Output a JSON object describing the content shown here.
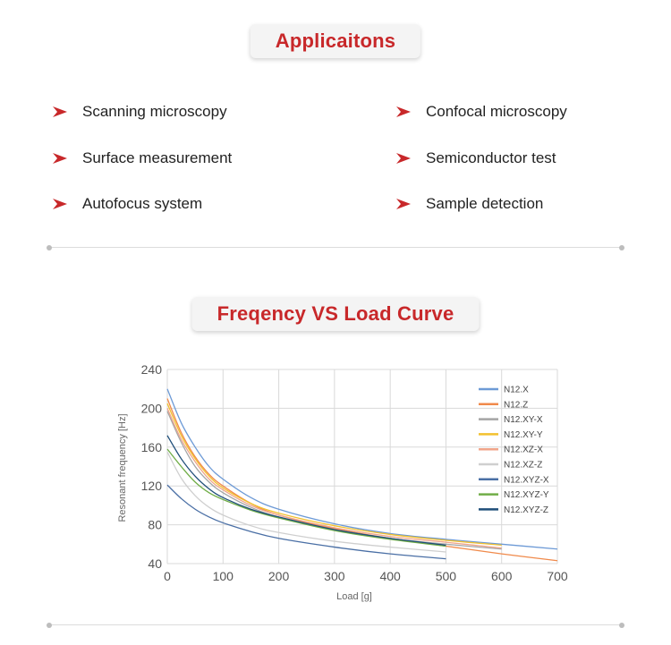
{
  "applications": {
    "title": "Applicaitons",
    "items": [
      {
        "label": "Scanning microscopy"
      },
      {
        "label": "Confocal microscopy"
      },
      {
        "label": "Surface measurement"
      },
      {
        "label": "Semiconductor test"
      },
      {
        "label": "Autofocus system"
      },
      {
        "label": "Sample detection"
      }
    ],
    "icon": "arrow-right-icon",
    "accent_color": "#c8282a"
  },
  "chart_section": {
    "title": "Freqency VS Load Curve"
  },
  "chart_data": {
    "type": "line",
    "xlabel": "Load [g]",
    "ylabel": "Resonant frequency [Hz]",
    "xlim": [
      0,
      700
    ],
    "ylim": [
      40,
      240
    ],
    "xticks": [
      0,
      100,
      200,
      300,
      400,
      500,
      600,
      700
    ],
    "yticks": [
      40,
      80,
      120,
      160,
      200,
      240
    ],
    "grid": true,
    "legend_position": "top-right",
    "series": [
      {
        "name": "N12.X",
        "color": "#6d9ad6",
        "x": [
          0,
          25,
          50,
          75,
          100,
          150,
          200,
          300,
          400,
          500,
          600,
          700
        ],
        "y": [
          220,
          185,
          160,
          140,
          127,
          108,
          96,
          81,
          71,
          65,
          60,
          55
        ]
      },
      {
        "name": "N12.Z",
        "color": "#f08a4b",
        "x": [
          0,
          25,
          50,
          75,
          100,
          150,
          200,
          300,
          400,
          500,
          600,
          700
        ],
        "y": [
          210,
          175,
          150,
          132,
          120,
          102,
          90,
          76,
          66,
          58,
          50,
          43
        ]
      },
      {
        "name": "N12.XY-X",
        "color": "#a5a5a5",
        "x": [
          0,
          25,
          50,
          75,
          100,
          150,
          200,
          300,
          400,
          500,
          600
        ],
        "y": [
          197,
          165,
          140,
          124,
          113,
          98,
          88,
          75,
          66,
          60,
          55
        ]
      },
      {
        "name": "N12.XY-Y",
        "color": "#f2c12e",
        "x": [
          0,
          25,
          50,
          75,
          100,
          150,
          200,
          300,
          400,
          500,
          600
        ],
        "y": [
          205,
          172,
          148,
          130,
          118,
          102,
          92,
          79,
          70,
          64,
          59
        ]
      },
      {
        "name": "N12.XZ-X",
        "color": "#f0a58a",
        "x": [
          0,
          25,
          50,
          75,
          100,
          150,
          200,
          300,
          400,
          500,
          600
        ],
        "y": [
          200,
          168,
          145,
          127,
          116,
          100,
          90,
          77,
          68,
          62,
          56
        ]
      },
      {
        "name": "N12.XZ-Z",
        "color": "#cfcfcf",
        "x": [
          0,
          25,
          50,
          75,
          100,
          150,
          200,
          300,
          400,
          500
        ],
        "y": [
          155,
          128,
          110,
          98,
          90,
          79,
          72,
          63,
          57,
          52
        ]
      },
      {
        "name": "N12.XYZ-X",
        "color": "#4a6fa5",
        "x": [
          0,
          25,
          50,
          75,
          100,
          150,
          200,
          300,
          400,
          500
        ],
        "y": [
          121,
          107,
          96,
          88,
          82,
          73,
          66,
          57,
          50,
          45
        ]
      },
      {
        "name": "N12.XYZ-Y",
        "color": "#70ad47",
        "x": [
          0,
          25,
          50,
          75,
          100,
          150,
          200,
          300,
          400,
          500
        ],
        "y": [
          158,
          140,
          124,
          113,
          106,
          95,
          87,
          74,
          65,
          58
        ]
      },
      {
        "name": "N12.XYZ-Z",
        "color": "#1f4e79",
        "x": [
          0,
          25,
          50,
          75,
          100,
          150,
          200,
          300,
          400,
          500
        ],
        "y": [
          172,
          148,
          130,
          117,
          108,
          96,
          88,
          75,
          66,
          59
        ]
      }
    ]
  }
}
